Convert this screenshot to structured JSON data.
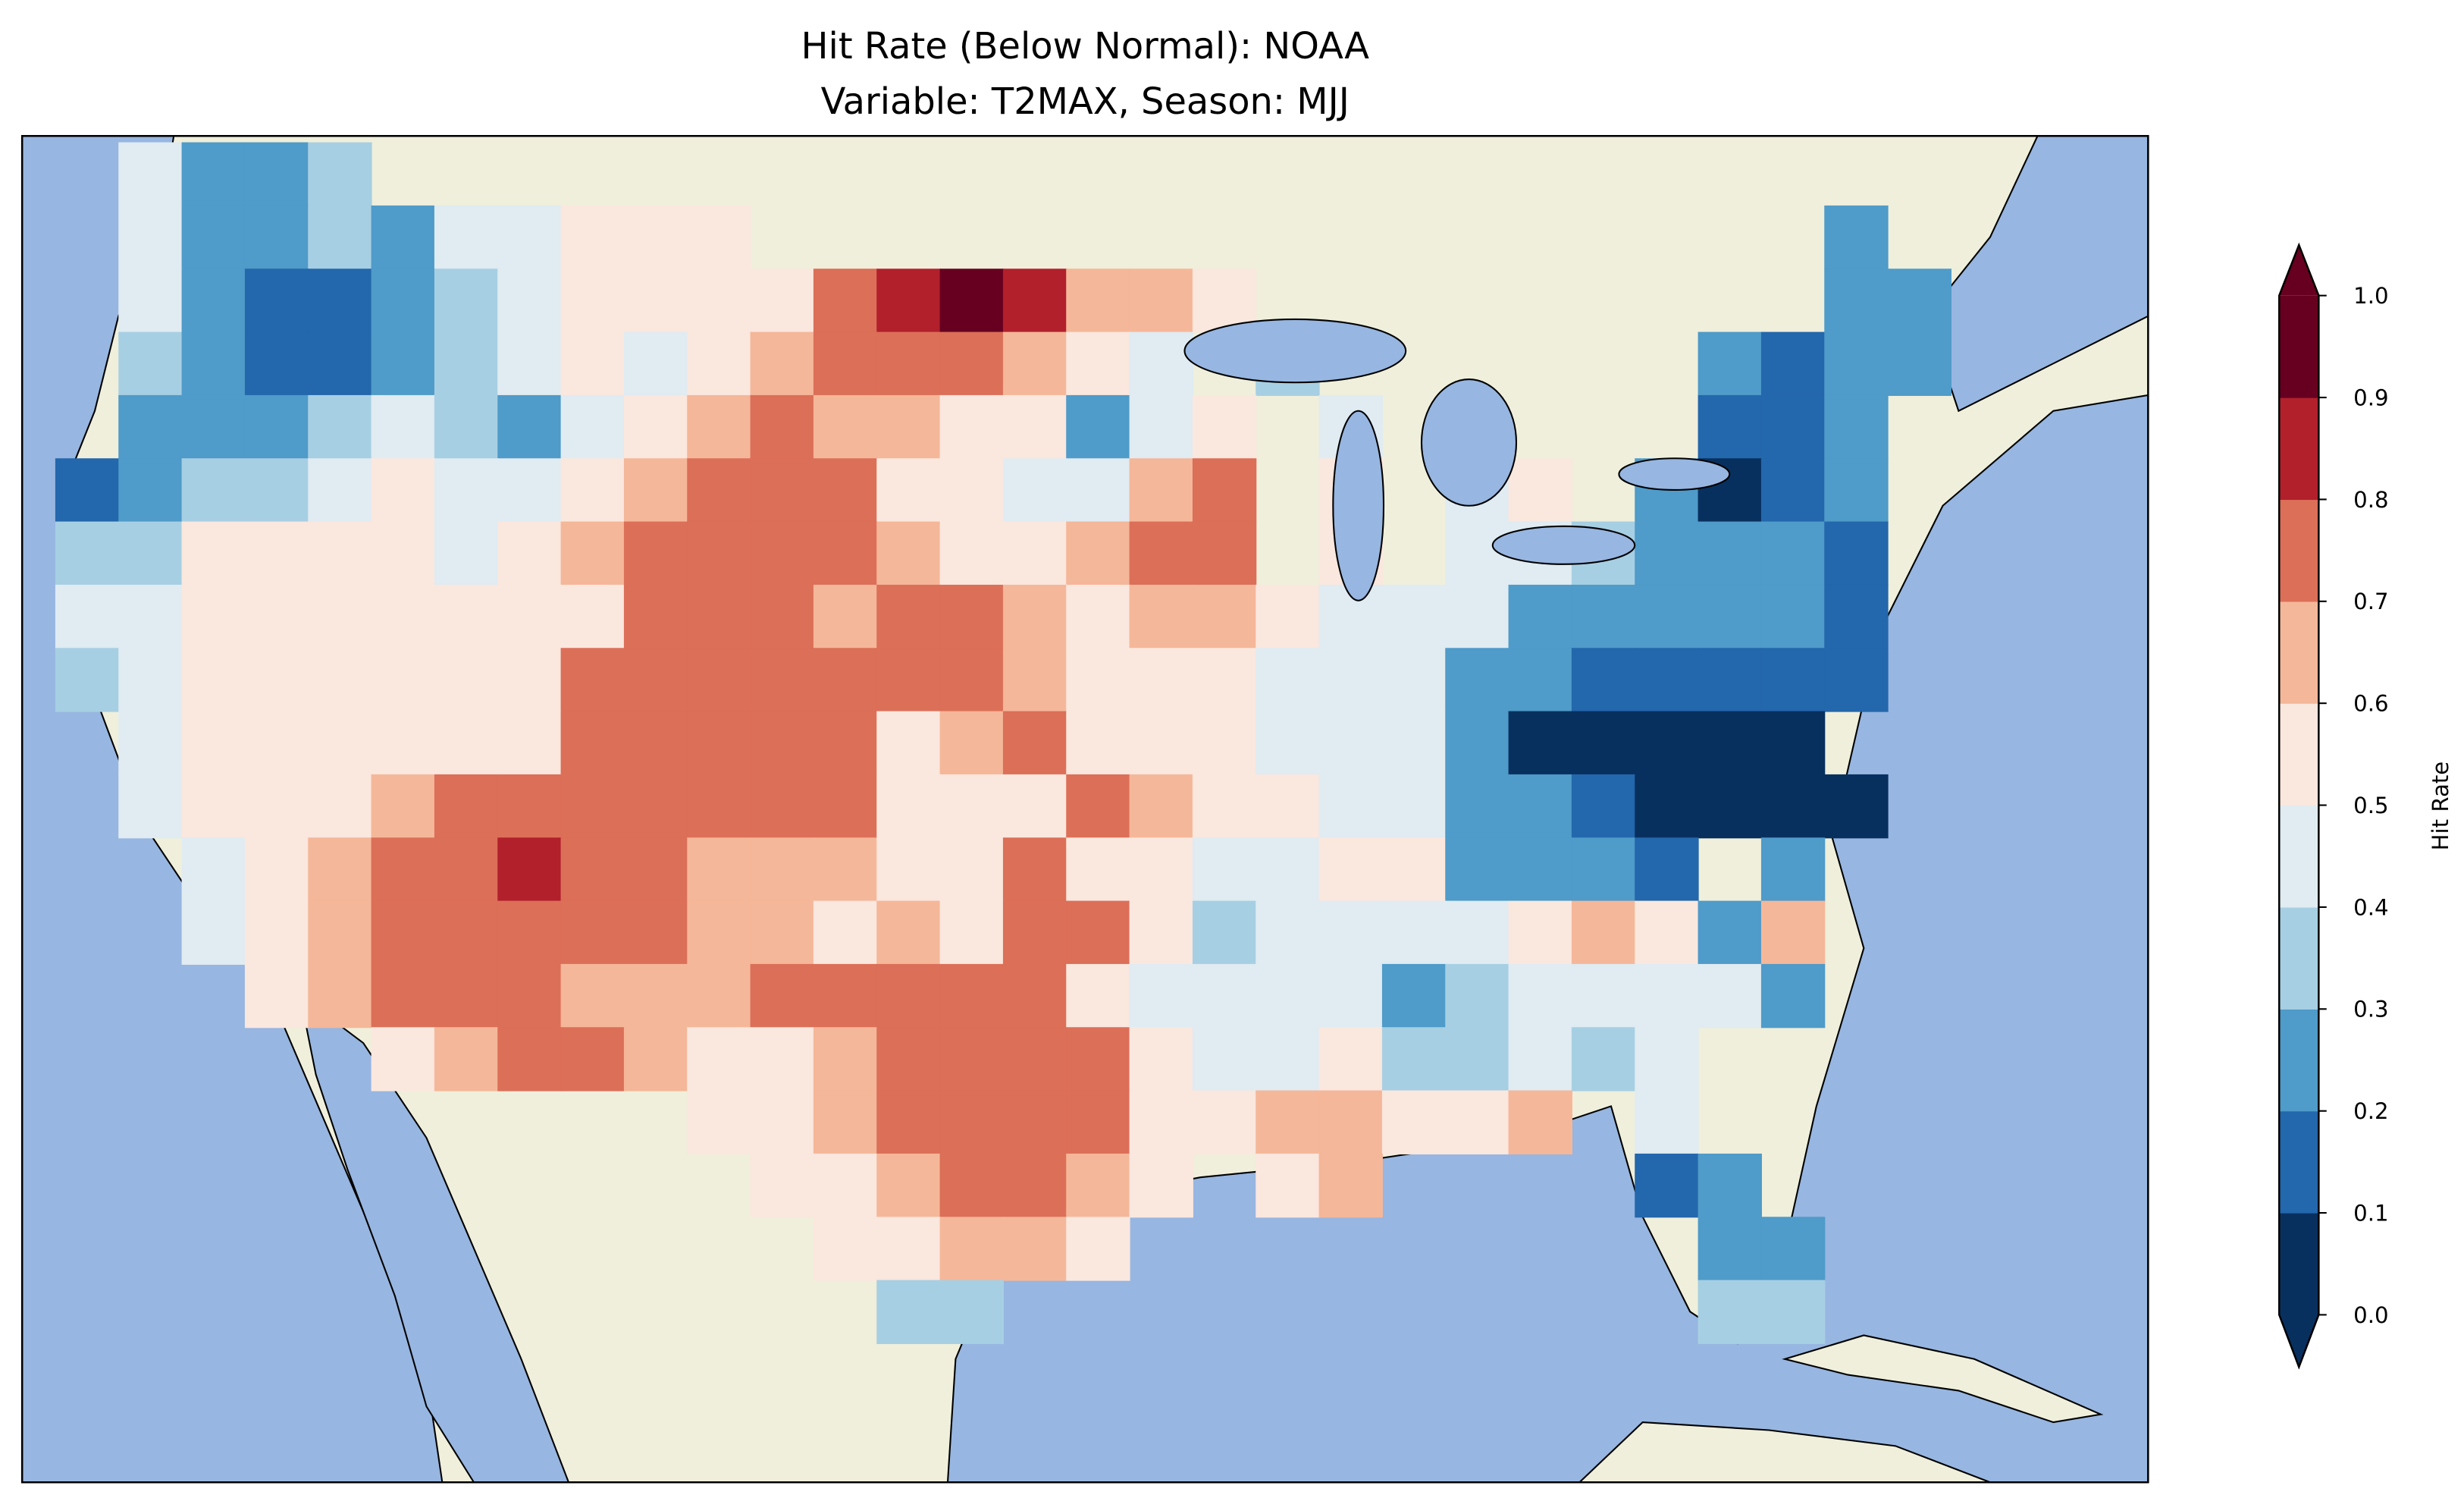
{
  "title_line1": "Hit Rate (Below Normal): NOAA",
  "title_line2": "Variable: T2MAX, Season: MJJ",
  "colors": {
    "ocean": "#97b6e1",
    "land": "#efefdb",
    "bins": [
      "#08305f",
      "#2367ac",
      "#4f9bc9",
      "#a7cfe3",
      "#e0ebf2",
      "#fae7de",
      "#f5b799",
      "#dc6f58",
      "#b2202c",
      "#670020"
    ]
  },
  "chart_data": {
    "type": "heatmap",
    "title": "Hit Rate (Below Normal): NOAA\nVariable: T2MAX, Season: MJJ",
    "colorbar": {
      "label": "Hit Rate",
      "range": [
        0.0,
        1.0
      ],
      "ticks": [
        "0.0",
        "0.1",
        "0.2",
        "0.3",
        "0.4",
        "0.5",
        "0.6",
        "0.7",
        "0.8",
        "0.9",
        "1.0"
      ],
      "extend": "both"
    },
    "grid_note": "coarse approximation; each digit is a hit-rate bin index (0 = 0.0-0.1 ... 9 = 0.9-1.0), '.' = no data; rows north to south, columns west to east",
    "grid": [
      ".4223.........................",
      ".4223244555.................2.",
      ".421123455557898665.........22",
      ".32112345456777654.3......2122",
      ".222343245676655245.4.....112.",
      "1233454456777554467.5.45.2012.",
      "3355554567777655677.5.4432221..",
      "44555555577767765665444222221..",
      "34555555777777765554442211111..",
      ".455555577777567555444200000..",
      ".4555677777775557655442210000..",
      "..456778776665575544552221 2...",
      "..45677777665657753444456526...",
      "...5677766677777544442344442...",
      ".....567765567777544533434....",
      "..........55677775566556 4.....",
      "...........5567765 56....12....",
      "............55665.........22...",
      ".............33...........33..."
    ]
  }
}
